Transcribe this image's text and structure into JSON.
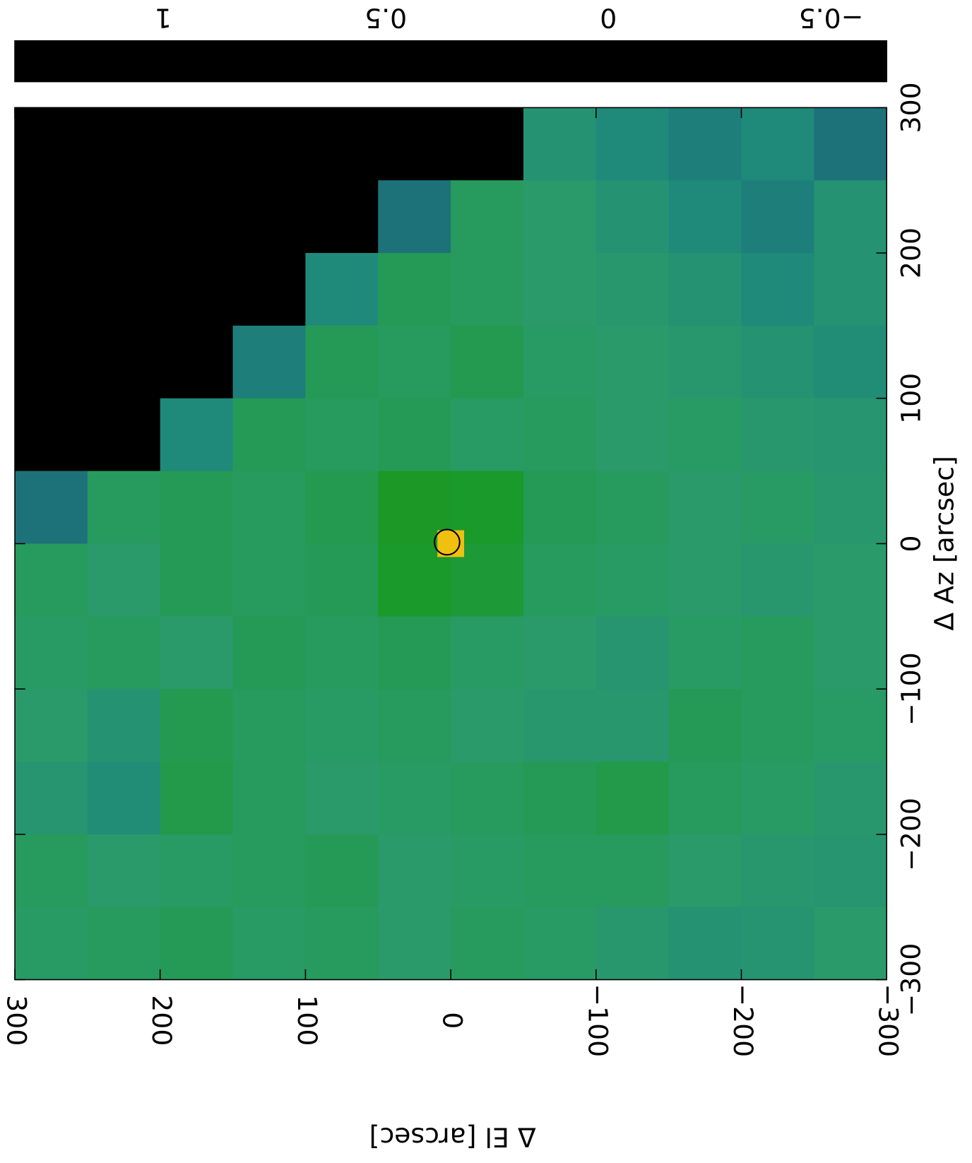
{
  "chart_data": {
    "type": "heatmap",
    "xlabel": "Δ El [arcsec]",
    "ylabel": "Δ Az [arcsec]",
    "x": [
      275,
      225,
      175,
      125,
      75,
      25,
      -25,
      -75,
      -125,
      -175,
      -225,
      -275
    ],
    "y": [
      275,
      225,
      175,
      125,
      75,
      25,
      -25,
      -75,
      -125,
      -175,
      -225,
      -275
    ],
    "xlim": [
      300,
      -300
    ],
    "ylim": [
      -300,
      300
    ],
    "xticks": [
      {
        "value": 300,
        "label": "300"
      },
      {
        "value": 200,
        "label": "200"
      },
      {
        "value": 100,
        "label": "100"
      },
      0,
      {
        "value": -100,
        "label": "−100"
      },
      {
        "value": -200,
        "label": "−200"
      },
      {
        "value": -300,
        "label": "−300"
      }
    ],
    "yticks": [
      {
        "value": -300,
        "label": "−300"
      },
      {
        "value": -200,
        "label": "−200"
      },
      {
        "value": -100,
        "label": "−100"
      },
      0,
      100,
      200,
      300
    ],
    "z": [
      [
        null,
        null,
        null,
        null,
        null,
        null,
        null,
        -0.05,
        -0.1,
        -0.15,
        -0.1,
        -0.2
      ],
      [
        null,
        null,
        null,
        null,
        null,
        -0.2,
        0.02,
        0.0,
        -0.05,
        -0.1,
        -0.15,
        -0.05
      ],
      [
        null,
        null,
        null,
        null,
        -0.1,
        0.03,
        0.02,
        0.0,
        -0.02,
        -0.05,
        -0.1,
        -0.05
      ],
      [
        null,
        null,
        null,
        -0.15,
        0.03,
        0.02,
        0.04,
        0.01,
        0.0,
        -0.02,
        -0.05,
        -0.08
      ],
      [
        null,
        null,
        -0.1,
        0.03,
        0.02,
        0.03,
        0.01,
        0.02,
        0.0,
        0.01,
        -0.02,
        -0.03
      ],
      [
        -0.2,
        0.02,
        0.03,
        0.02,
        0.04,
        0.12,
        0.1,
        0.03,
        0.02,
        0.0,
        0.01,
        -0.02
      ],
      [
        0.02,
        0.0,
        0.03,
        0.02,
        0.03,
        0.1,
        0.08,
        0.02,
        0.01,
        0.0,
        -0.02,
        0.0
      ],
      [
        0.01,
        0.02,
        0.0,
        0.03,
        0.02,
        0.03,
        0.01,
        0.0,
        -0.03,
        0.01,
        0.02,
        0.0
      ],
      [
        0.0,
        -0.05,
        0.04,
        0.02,
        0.01,
        0.02,
        0.0,
        -0.02,
        -0.02,
        0.03,
        0.02,
        0.01
      ],
      [
        -0.03,
        -0.08,
        0.05,
        0.02,
        0.0,
        0.01,
        0.02,
        0.03,
        0.05,
        0.02,
        0.01,
        -0.02
      ],
      [
        0.02,
        0.0,
        0.01,
        0.02,
        0.03,
        0.0,
        0.01,
        0.02,
        0.02,
        0.0,
        -0.02,
        -0.03
      ],
      [
        0.01,
        0.02,
        0.03,
        0.01,
        0.02,
        0.0,
        0.02,
        0.01,
        -0.02,
        -0.05,
        -0.04,
        0.0
      ]
    ],
    "peak": {
      "x": 0,
      "y": 0,
      "value": 1.1
    },
    "colorbar": {
      "lim": [
        1.333,
        -0.625
      ],
      "ticks": [
        1,
        0.5,
        0,
        {
          "value": -0.5,
          "label": "−0.5"
        }
      ],
      "stops": [
        {
          "value": -0.625,
          "color": "#000000"
        },
        {
          "value": -0.5,
          "color": "#0a1a4a"
        },
        {
          "value": -0.3,
          "color": "#1a5a7a"
        },
        {
          "value": -0.1,
          "color": "#1f8a7a"
        },
        {
          "value": 0,
          "color": "#2a9a6a"
        },
        {
          "value": 0.1,
          "color": "#1a9a2a"
        },
        {
          "value": 0.25,
          "color": "#2a8a10"
        },
        {
          "value": 0.4,
          "color": "#8a5010"
        },
        {
          "value": 0.5,
          "color": "#c01010"
        },
        {
          "value": 0.7,
          "color": "#e04010"
        },
        {
          "value": 0.9,
          "color": "#e88a10"
        },
        {
          "value": 1.1,
          "color": "#f0c010"
        },
        {
          "value": 1.333,
          "color": "#ffff20"
        }
      ]
    }
  }
}
